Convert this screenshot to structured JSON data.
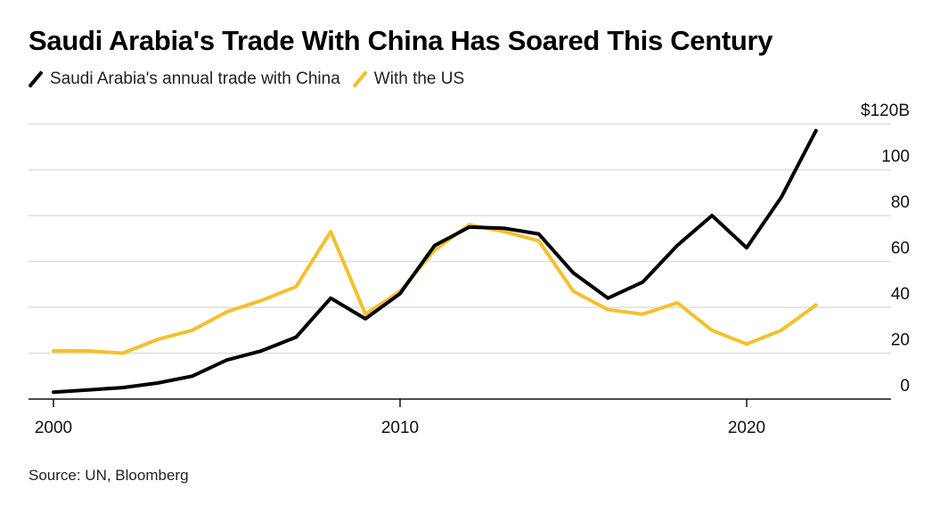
{
  "title": "Saudi Arabia's Trade With China Has Soared This Century",
  "legend": [
    {
      "label": "Saudi Arabia's annual trade with China",
      "color": "#000000"
    },
    {
      "label": "With the US",
      "color": "#f5c02b"
    }
  ],
  "source": "Source: UN, Bloomberg",
  "chart_data": {
    "type": "line",
    "title": "Saudi Arabia's Trade With China Has Soared This Century",
    "xlabel": "",
    "ylabel": "",
    "x": [
      2000,
      2001,
      2002,
      2003,
      2004,
      2005,
      2006,
      2007,
      2008,
      2009,
      2010,
      2011,
      2012,
      2013,
      2014,
      2015,
      2016,
      2017,
      2018,
      2019,
      2020,
      2021,
      2022
    ],
    "series": [
      {
        "name": "Saudi Arabia's annual trade with China",
        "color": "#000000",
        "values": [
          3,
          4,
          5,
          7,
          10,
          17,
          21,
          27,
          44,
          35,
          46,
          67,
          75,
          74.5,
          72,
          55,
          44,
          51,
          67,
          80,
          66,
          88,
          117
        ]
      },
      {
        "name": "With the US",
        "color": "#f5c02b",
        "values": [
          21,
          21,
          20,
          26,
          30,
          38,
          43,
          49,
          73,
          37,
          47,
          65,
          76,
          73,
          69,
          47,
          39,
          37,
          42,
          30,
          24,
          30,
          41
        ]
      }
    ],
    "xlim": [
      2000,
      2024
    ],
    "ylim": [
      0,
      120
    ],
    "x_ticks": [
      2000,
      2010,
      2020
    ],
    "x_tick_labels": [
      "2000",
      "2010",
      "2020"
    ],
    "y_ticks": [
      0,
      20,
      40,
      60,
      80,
      100,
      120
    ],
    "y_tick_labels": [
      "0",
      "20",
      "40",
      "60",
      "80",
      "100",
      "$120B"
    ],
    "grid": "horizontal",
    "y_axis_side": "right",
    "legend_position": "top-left"
  }
}
